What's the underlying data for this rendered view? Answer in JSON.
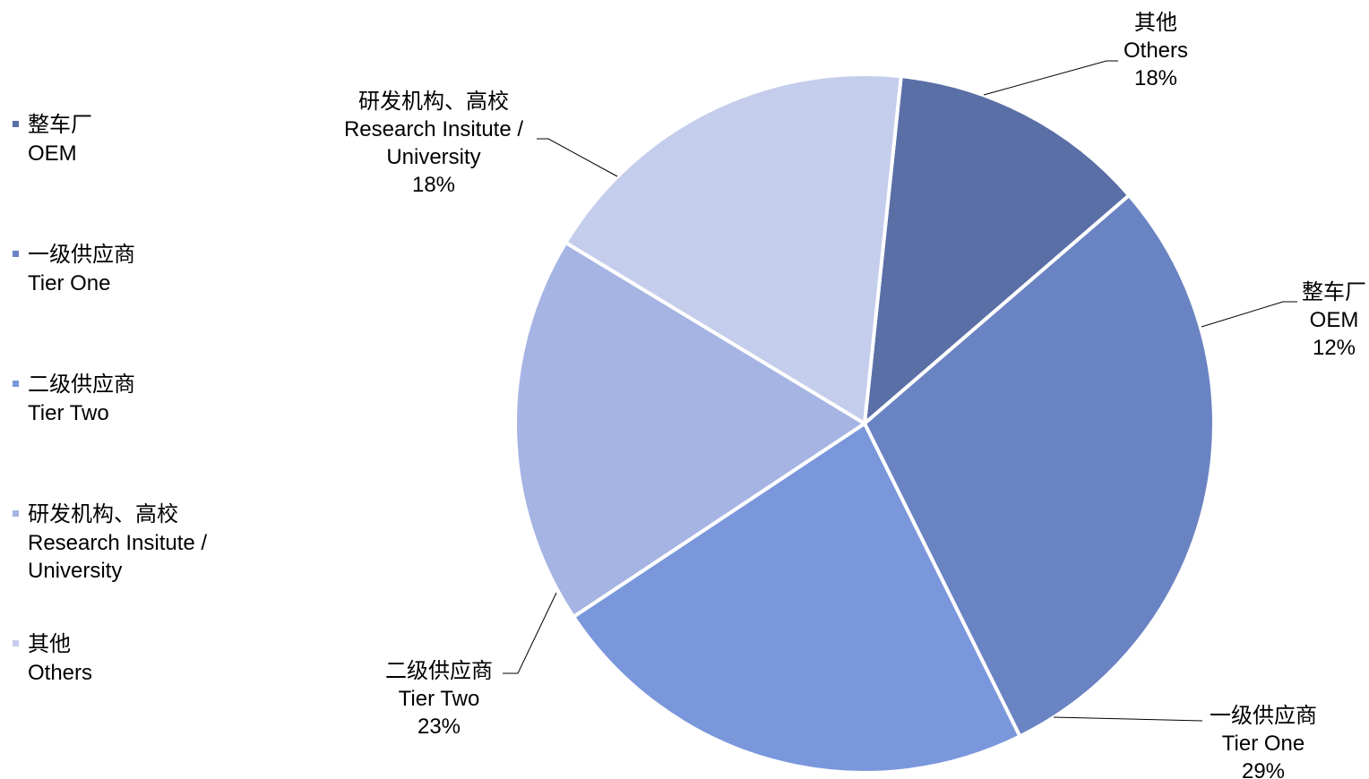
{
  "chart_data": {
    "type": "pie",
    "title": "",
    "categories": [
      {
        "zh": "整车厂",
        "en": "OEM",
        "en_lines": [
          "OEM"
        ],
        "value": 12,
        "label": "12%",
        "color": "#5a6fa6"
      },
      {
        "zh": "一级供应商",
        "en": "Tier One",
        "en_lines": [
          "Tier One"
        ],
        "value": 29,
        "label": "29%",
        "color": "#6a83c2"
      },
      {
        "zh": "二级供应商",
        "en": "Tier Two",
        "en_lines": [
          "Tier Two"
        ],
        "value": 23,
        "label": "23%",
        "color": "#7a97dc"
      },
      {
        "zh": "研发机构、高校",
        "en": "Research Insitute / University",
        "en_lines": [
          "Research Insitute /",
          "University"
        ],
        "value": 18,
        "label": "18%",
        "color": "#a5b4e3"
      },
      {
        "zh": "其他",
        "en": "Others",
        "en_lines": [
          "Others"
        ],
        "value": 18,
        "label": "18%",
        "color": "#c5cdec"
      }
    ],
    "legend_position": "left",
    "start_angle_deg": 6,
    "direction": "clockwise"
  }
}
